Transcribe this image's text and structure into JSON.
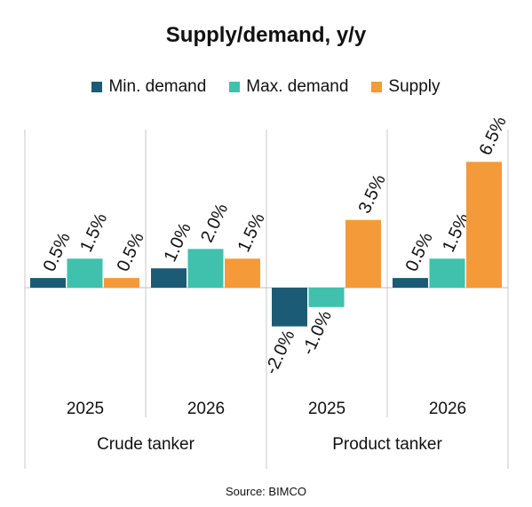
{
  "chart_data": {
    "type": "bar",
    "title": "Supply/demand, y/y",
    "source": "Source: BIMCO",
    "groups": [
      {
        "label": "Crude tanker",
        "categories": [
          "2025",
          "2026"
        ]
      },
      {
        "label": "Product tanker",
        "categories": [
          "2025",
          "2026"
        ]
      }
    ],
    "series": [
      {
        "name": "Min. demand",
        "color": "#1b5b75",
        "values": [
          0.5,
          1.0,
          -2.0,
          0.5
        ],
        "labels": [
          "0.5%",
          "1.0%",
          "-2.0%",
          "0.5%"
        ]
      },
      {
        "name": "Max. demand",
        "color": "#3fc1ad",
        "values": [
          1.5,
          2.0,
          -1.0,
          1.5
        ],
        "labels": [
          "1.5%",
          "2.0%",
          "-1.0%",
          "1.5%"
        ]
      },
      {
        "name": "Supply",
        "color": "#f59a38",
        "values": [
          0.5,
          1.5,
          3.5,
          6.5
        ],
        "labels": [
          "0.5%",
          "1.5%",
          "3.5%",
          "6.5%"
        ]
      }
    ],
    "ylim": [
      -2.5,
      8.0
    ],
    "grid": false,
    "legend_position": "top-center"
  }
}
